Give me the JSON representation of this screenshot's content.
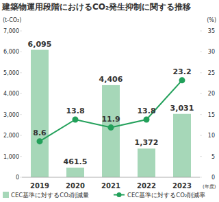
{
  "chart_data": {
    "type": "bar",
    "title": "建築物運用段階におけるCO₂発生抑制に関する推移",
    "categories": [
      "2019",
      "2020",
      "2021",
      "2022",
      "2023"
    ],
    "x_label": "(年度)",
    "y_label": "(t-CO₂)",
    "y2_label": "(%)",
    "series": [
      {
        "name": "CEC基準に対するCO₂削減量",
        "type": "bar",
        "color": "#a6d7b8",
        "values": [
          6095,
          461.5,
          4406,
          1372,
          3031
        ],
        "value_labels": [
          "6,095",
          "461.5",
          "4,406",
          "1,372",
          "3,031"
        ]
      },
      {
        "name": "CEC基準に対するCO₂削減率",
        "type": "line",
        "axis": "y2",
        "color": "#22a05a",
        "marker": "circle",
        "values": [
          8.6,
          13.8,
          11.9,
          13.8,
          23.2
        ]
      }
    ],
    "ylim": [
      0,
      7000
    ],
    "yticks": [
      0,
      {
        "value": 1000,
        "label": "1,000"
      },
      {
        "value": 2000,
        "label": "2,000"
      },
      {
        "value": 3000,
        "label": "3,000"
      },
      {
        "value": 4000,
        "label": "4,000"
      },
      {
        "value": 5000,
        "label": "5,000"
      },
      {
        "value": 6000,
        "label": "6,000"
      },
      {
        "value": 7000,
        "label": "7,000"
      }
    ],
    "y2lim": [
      0,
      35
    ],
    "y2ticks": [
      0,
      5,
      10,
      15,
      20,
      25,
      30,
      35
    ],
    "data_labels": true,
    "grid": false,
    "legend": "bottom"
  }
}
